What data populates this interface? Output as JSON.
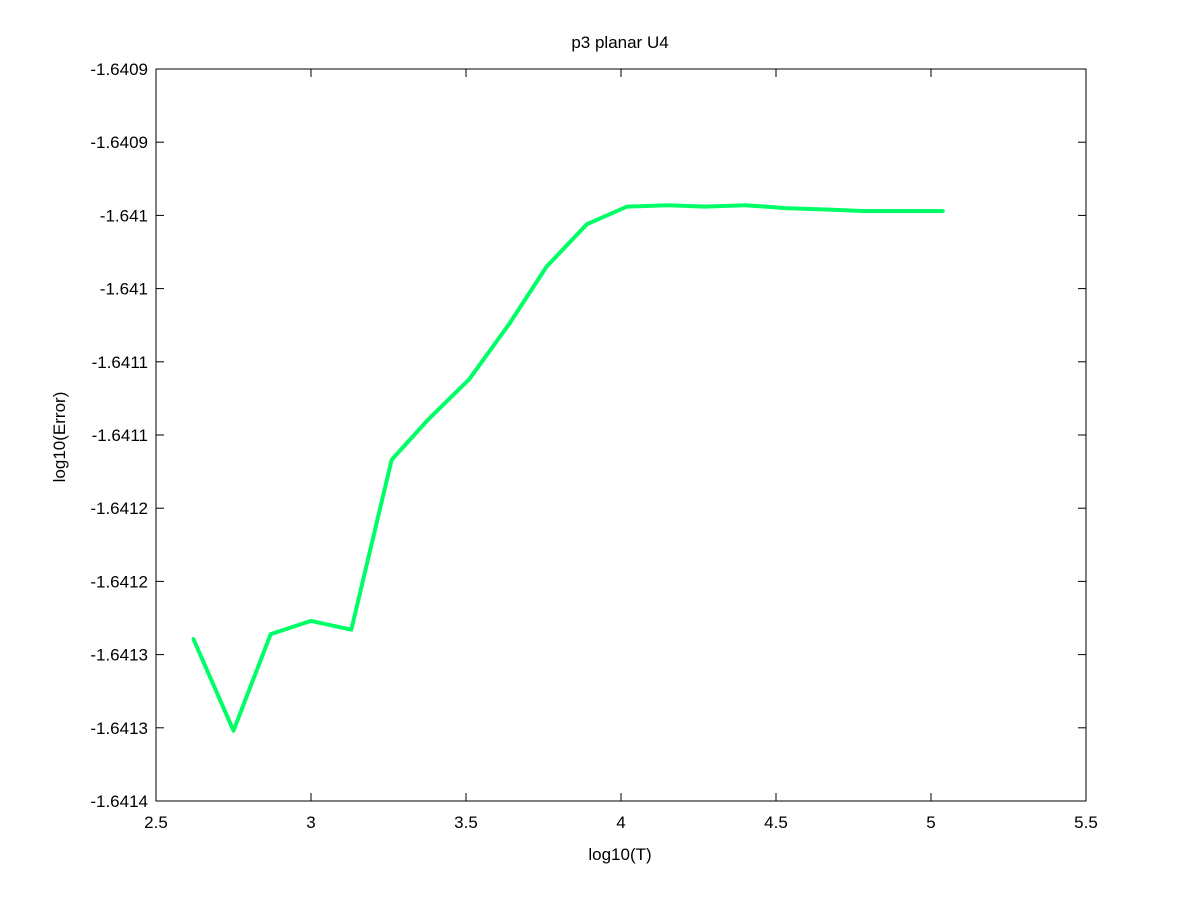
{
  "chart_data": {
    "type": "line",
    "title": "p3 planar U4",
    "xlabel": "log10(T)",
    "ylabel": "log10(Error)",
    "xlim": [
      2.5,
      5.5
    ],
    "ylim": [
      -1.6414,
      -1.6409
    ],
    "x_ticks": [
      "2.5",
      "3",
      "3.5",
      "4",
      "4.5",
      "5",
      "5.5"
    ],
    "y_ticks": [
      "-1.6409",
      "-1.6409",
      "-1.641",
      "-1.641",
      "-1.6411",
      "-1.6411",
      "-1.6412",
      "-1.6412",
      "-1.6413",
      "-1.6413",
      "-1.6414"
    ],
    "grid": false,
    "series": [
      {
        "color": "#00ff66",
        "x": [
          2.62,
          2.75,
          2.87,
          3.0,
          3.13,
          3.26,
          3.38,
          3.51,
          3.64,
          3.76,
          3.89,
          4.02,
          4.15,
          4.27,
          4.4,
          4.53,
          4.66,
          4.78,
          4.91,
          5.04
        ],
        "y": [
          -1.641289,
          -1.641352,
          -1.641286,
          -1.641277,
          -1.641283,
          -1.641167,
          -1.641139,
          -1.641112,
          -1.641074,
          -1.641035,
          -1.641006,
          -1.640994,
          -1.640993,
          -1.640994,
          -1.640993,
          -1.640995,
          -1.640996,
          -1.640997,
          -1.640997,
          -1.640997
        ]
      }
    ]
  }
}
